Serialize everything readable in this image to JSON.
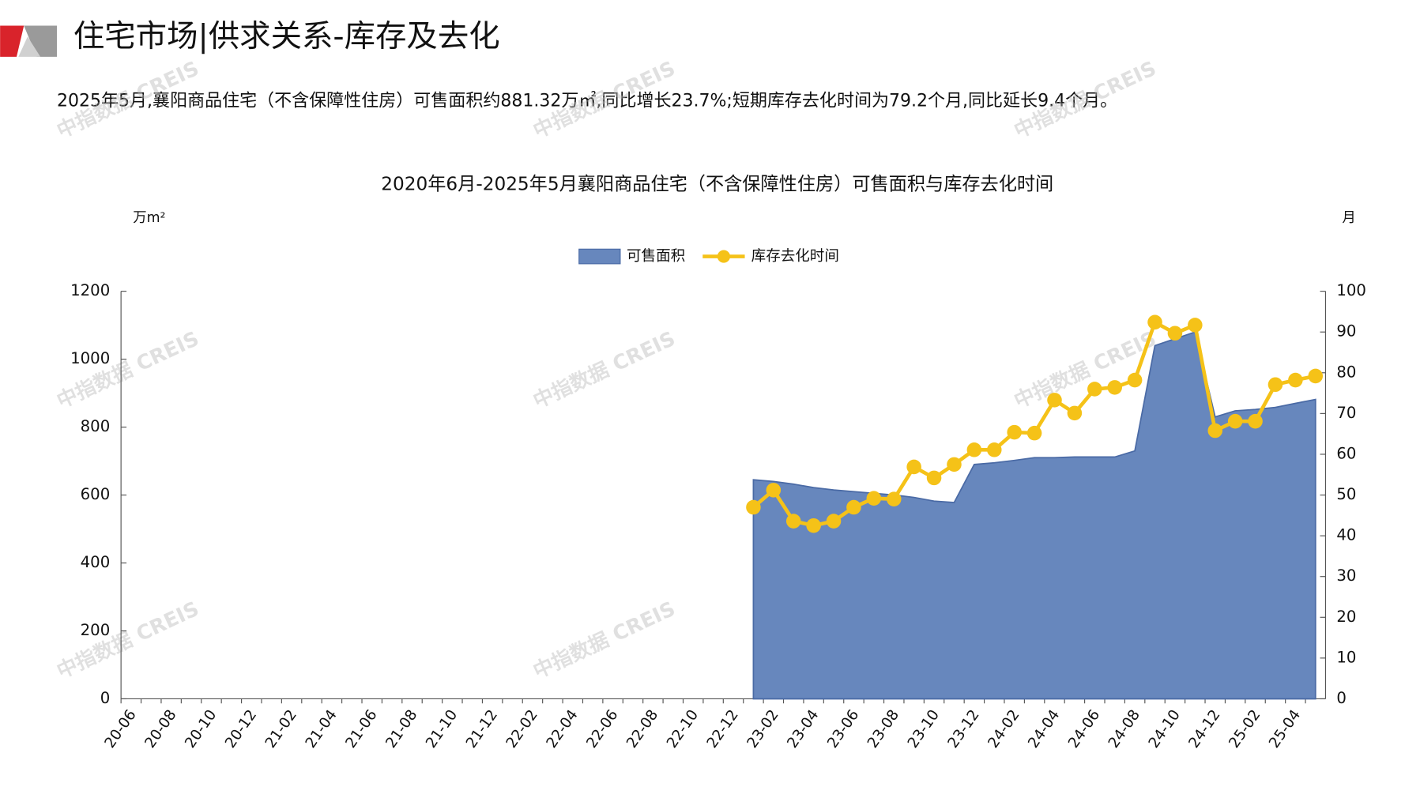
{
  "header": {
    "title": "住宅市场|供求关系-库存及去化",
    "summary": "2025年5月,襄阳商品住宅（不含保障性住房）可售面积约881.32万㎡,同比增长23.7%;短期库存去化时间为79.2个月,同比延长9.4个月。"
  },
  "watermark": "中指数据 CREIS",
  "chart_data": {
    "type": "area-line",
    "title": "2020年6月-2025年5月襄阳商品住宅（不含保障性住房）可售面积与库存去化时间",
    "y_label": "万m²",
    "y2_label": "月",
    "categories": [
      "20-06",
      null,
      "20-08",
      null,
      "20-10",
      null,
      "20-12",
      null,
      "21-02",
      null,
      "21-04",
      null,
      "21-06",
      null,
      "21-08",
      null,
      "21-10",
      null,
      "21-12",
      null,
      "22-02",
      null,
      "22-04",
      null,
      "22-06",
      null,
      "22-08",
      null,
      "22-10",
      null,
      "22-12",
      null,
      "23-02",
      null,
      "23-04",
      null,
      "23-06",
      null,
      "23-08",
      null,
      "23-10",
      null,
      "23-12",
      null,
      "24-02",
      null,
      "24-04",
      null,
      "24-06",
      null,
      "24-08",
      null,
      "24-10",
      null,
      "24-12",
      null,
      "25-02",
      null,
      "25-04",
      null
    ],
    "series": [
      {
        "name": "可售面积",
        "color": "#6787bd",
        "values": [
          null,
          null,
          null,
          null,
          null,
          null,
          null,
          null,
          null,
          null,
          null,
          null,
          null,
          null,
          null,
          null,
          null,
          null,
          null,
          null,
          null,
          null,
          null,
          null,
          null,
          null,
          null,
          null,
          null,
          null,
          null,
          645,
          640,
          632,
          622,
          615,
          610,
          605,
          600,
          593,
          582,
          578,
          690,
          695,
          702,
          710,
          710,
          712,
          712,
          712,
          730,
          1040,
          1060,
          1080,
          830,
          848,
          852,
          858,
          870,
          881.32
        ]
      },
      {
        "name": "库存去化时间",
        "color": "#f5c218",
        "axis": "y2",
        "values": [
          null,
          null,
          null,
          null,
          null,
          null,
          null,
          null,
          null,
          null,
          null,
          null,
          null,
          null,
          null,
          null,
          null,
          null,
          null,
          null,
          null,
          null,
          null,
          null,
          null,
          null,
          null,
          null,
          null,
          null,
          null,
          47,
          51.2,
          43.6,
          42.5,
          43.6,
          47,
          49.2,
          49,
          56.9,
          54.2,
          57.5,
          61.1,
          61.1,
          65.4,
          65.2,
          73.3,
          70.1,
          76,
          76.4,
          78.2,
          92.4,
          89.7,
          91.7,
          65.8,
          68.1,
          68.1,
          77.1,
          78.2,
          79.2
        ]
      }
    ],
    "ylim": [
      0,
      1200
    ],
    "yticks": [
      0,
      200,
      400,
      600,
      800,
      1000,
      1200
    ],
    "y2lim": [
      0,
      100
    ],
    "y2ticks": [
      0,
      10,
      20,
      30,
      40,
      50,
      60,
      70,
      80,
      90,
      100
    ],
    "legend": "top"
  }
}
